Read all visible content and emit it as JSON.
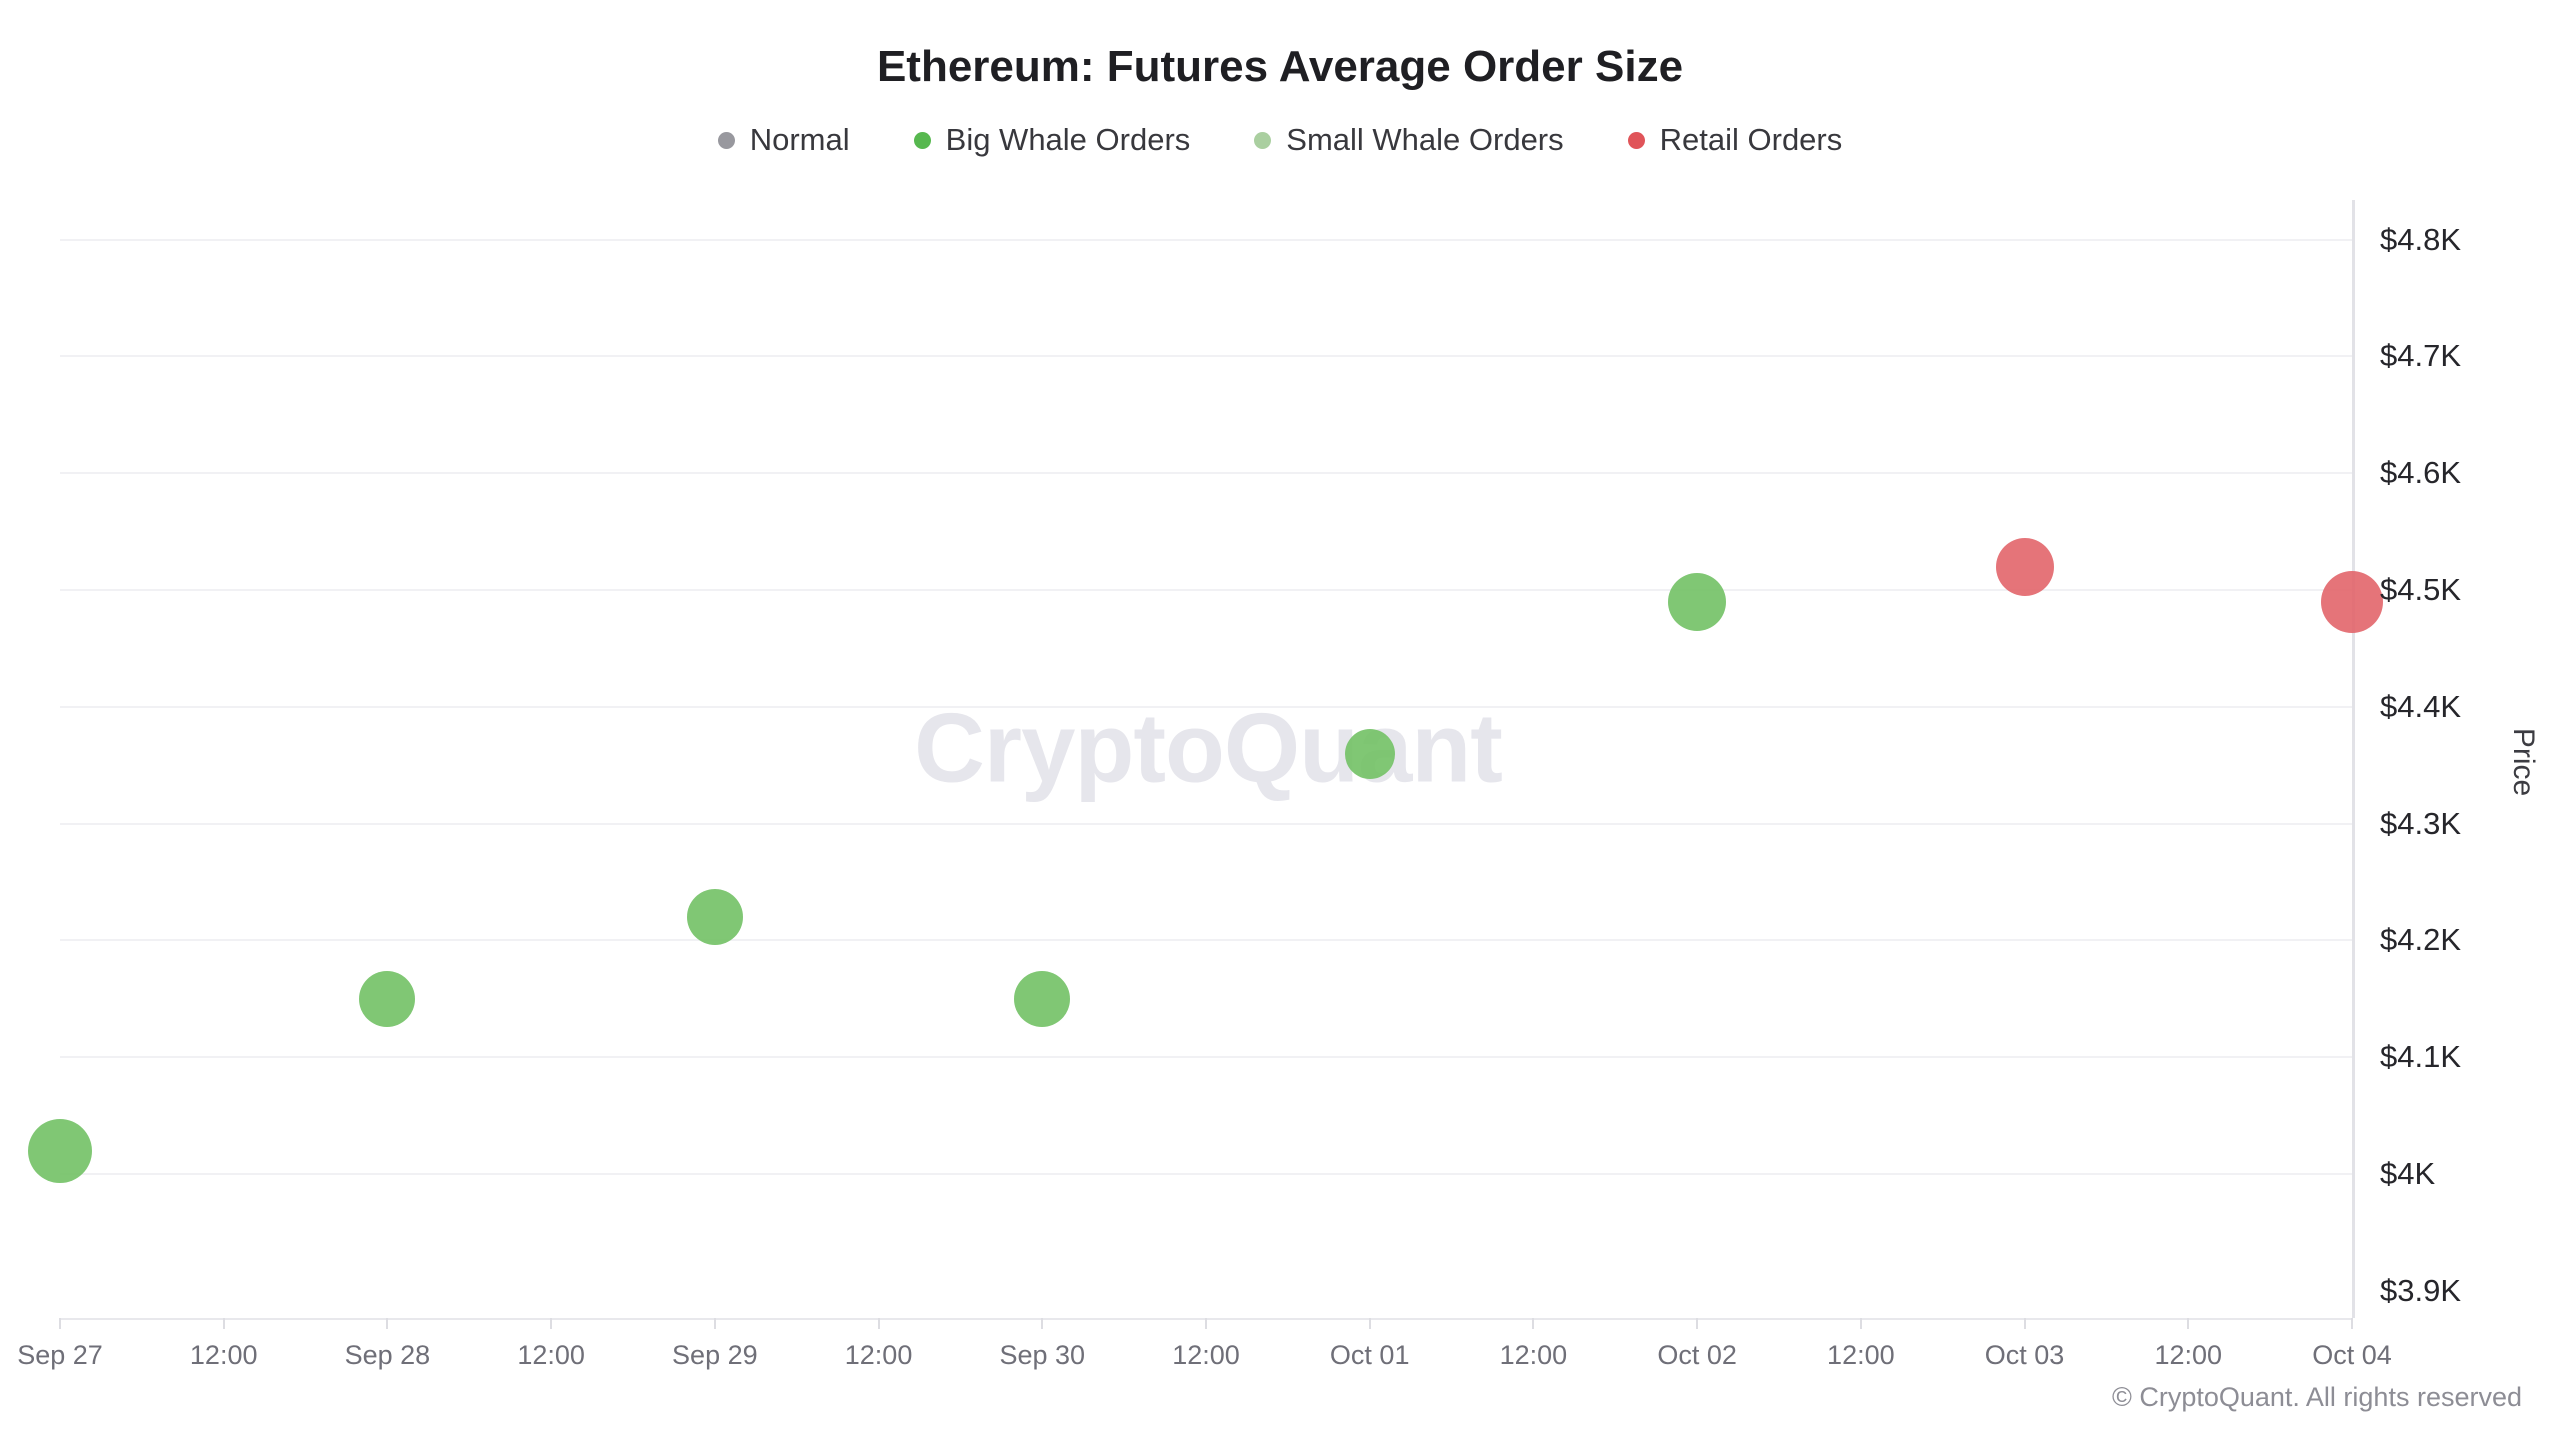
{
  "title": "Ethereum: Futures Average Order Size",
  "watermark": "CryptoQuant",
  "copyright": "© CryptoQuant. All rights reserved",
  "legend": {
    "items": [
      {
        "label": "Normal",
        "color": "#98989e"
      },
      {
        "label": "Big Whale Orders",
        "color": "#57b84f"
      },
      {
        "label": "Small Whale Orders",
        "color": "#aacfa0"
      },
      {
        "label": "Retail Orders",
        "color": "#e05459"
      }
    ]
  },
  "chart_data": {
    "type": "scatter",
    "title": "Ethereum: Futures Average Order Size",
    "xlabel": "",
    "ylabel": "Price",
    "grid": true,
    "legend_position": "top",
    "ylim": [
      3.8766,
      4.834
    ],
    "x_ticks": [
      "Sep 27",
      "12:00",
      "Sep 28",
      "12:00",
      "Sep 29",
      "12:00",
      "Sep 30",
      "12:00",
      "Oct 01",
      "12:00",
      "Oct 02",
      "12:00",
      "Oct 03",
      "12:00",
      "Oct 04"
    ],
    "y_ticks": [
      {
        "label": "$4.8K",
        "value": 4.8,
        "gridline": true
      },
      {
        "label": "$4.7K",
        "value": 4.7,
        "gridline": true
      },
      {
        "label": "$4.6K",
        "value": 4.6,
        "gridline": true
      },
      {
        "label": "$4.5K",
        "value": 4.5,
        "gridline": true
      },
      {
        "label": "$4.4K",
        "value": 4.4,
        "gridline": true
      },
      {
        "label": "$4.3K",
        "value": 4.3,
        "gridline": true
      },
      {
        "label": "$4.2K",
        "value": 4.2,
        "gridline": true
      },
      {
        "label": "$4.1K",
        "value": 4.1,
        "gridline": true
      },
      {
        "label": "$4K",
        "value": 4.0,
        "gridline": true
      },
      {
        "label": "$3.9K",
        "value": 3.9,
        "gridline": false
      }
    ],
    "series": [
      {
        "name": "Big Whale Orders",
        "color": "#72c165",
        "points": [
          {
            "date": "Sep 27",
            "x_tick_index": 0,
            "price_k": 4.02,
            "r": 32
          },
          {
            "date": "Sep 28",
            "x_tick_index": 2,
            "price_k": 4.15,
            "r": 28
          },
          {
            "date": "Sep 29",
            "x_tick_index": 4,
            "price_k": 4.22,
            "r": 28
          },
          {
            "date": "Sep 30",
            "x_tick_index": 6,
            "price_k": 4.15,
            "r": 28
          },
          {
            "date": "Oct 01",
            "x_tick_index": 8,
            "price_k": 4.36,
            "r": 25
          },
          {
            "date": "Oct 02",
            "x_tick_index": 10,
            "price_k": 4.49,
            "r": 29
          }
        ]
      },
      {
        "name": "Retail Orders",
        "color": "#e2656a",
        "points": [
          {
            "date": "Oct 03",
            "x_tick_index": 12,
            "price_k": 4.52,
            "r": 29
          },
          {
            "date": "Oct 04",
            "x_tick_index": 14,
            "price_k": 4.49,
            "r": 31
          }
        ]
      }
    ]
  }
}
